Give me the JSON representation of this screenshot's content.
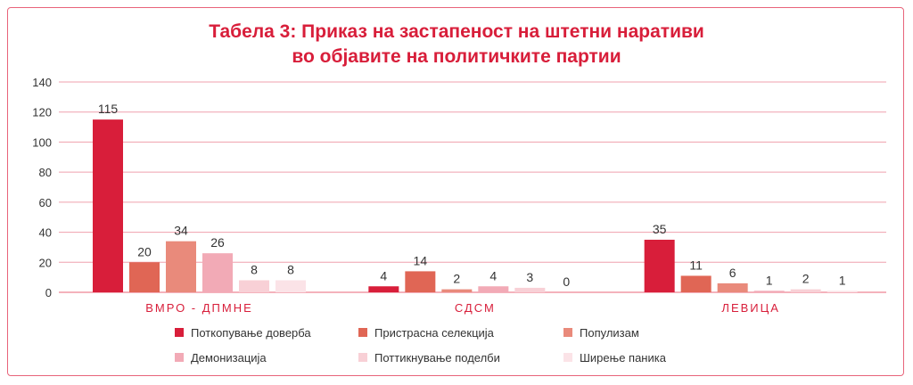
{
  "chart_data": {
    "type": "bar",
    "title_line1": "Табела 3: Приказ на застапеност на штетни наративи",
    "title_line2": "во објавите на политичките партии",
    "categories": [
      "ВМРО - ДПМНЕ",
      "СДСМ",
      "ЛЕВИЦА"
    ],
    "ylim": [
      0,
      140
    ],
    "yticks": [
      0,
      20,
      40,
      60,
      80,
      100,
      120,
      140
    ],
    "grid": true,
    "legend_position": "bottom",
    "series": [
      {
        "name": "Поткопување доверба",
        "color": "#d81e3a",
        "values": [
          115,
          4,
          35
        ]
      },
      {
        "name": "Пристрасна селекција",
        "color": "#e06655",
        "values": [
          20,
          14,
          11
        ]
      },
      {
        "name": "Популизам",
        "color": "#e98a7b",
        "values": [
          34,
          2,
          6
        ]
      },
      {
        "name": "Демонизација",
        "color": "#f2aab6",
        "values": [
          26,
          4,
          1
        ]
      },
      {
        "name": "Поттикнување поделби",
        "color": "#f8d0d6",
        "values": [
          8,
          3,
          2
        ]
      },
      {
        "name": "Ширење паника",
        "color": "#fbe3e7",
        "values": [
          8,
          0,
          1
        ]
      }
    ]
  }
}
